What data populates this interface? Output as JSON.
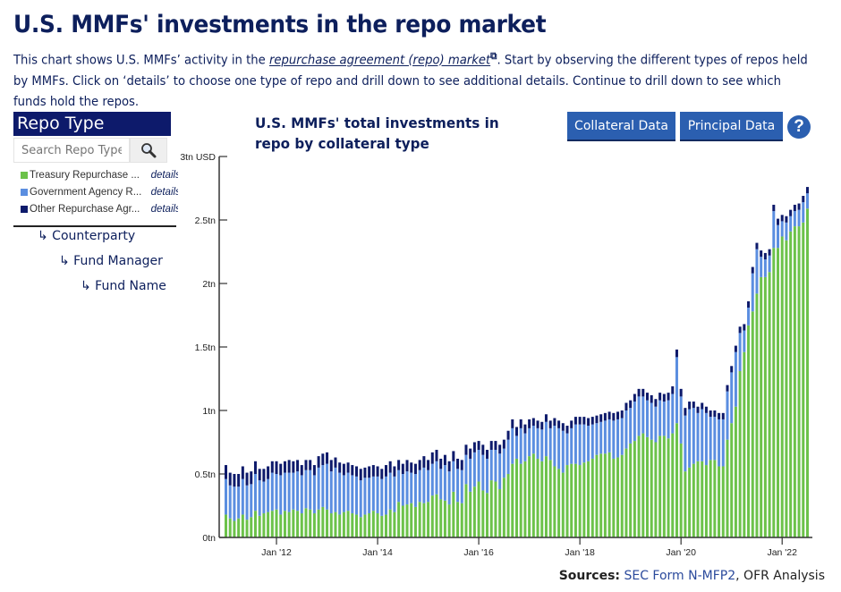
{
  "page": {
    "title": "U.S. MMFs' investments in the repo market",
    "intro_before": "This chart shows U.S. MMFs’ activity in the ",
    "intro_link": "repurchase agreement (repo) market",
    "intro_after": ". Start by observing the different types of repos held by MMFs. Click on ‘details’ to choose one type of repo and drill down to see additional details. Continue to drill down to see which funds hold the repos."
  },
  "sidebar": {
    "header": "Repo Type",
    "search_placeholder": "Search Repo Type",
    "search_icon": "magnifier-icon",
    "items": [
      {
        "label": "Treasury Repurchase ...",
        "detail": "details",
        "color": "#6cc24a"
      },
      {
        "label": "Government Agency R...",
        "detail": "details",
        "color": "#5b8ee0"
      },
      {
        "label": "Other Repurchase Agr...",
        "detail": "details",
        "color": "#0d1a6b"
      }
    ],
    "drilldown": [
      "↳ Counterparty",
      "↳ Fund Manager",
      "↳ Fund Name"
    ]
  },
  "toolbar": {
    "collateral_label": "Collateral Data",
    "principal_label": "Principal Data",
    "help_label": "?"
  },
  "sources": {
    "label": "Sources:",
    "link": "SEC Form N-MFP2",
    "rest": ", OFR Analysis"
  },
  "chart_data": {
    "type": "bar",
    "stacked": true,
    "title": "U.S. MMFs' total investments in repo by collateral type",
    "xlabel": "",
    "ylabel": "USD",
    "ylim": [
      0,
      3
    ],
    "yticks": [
      "0tn",
      "0.5tn",
      "1tn",
      "1.5tn",
      "2tn",
      "2.5tn",
      "3tn USD"
    ],
    "ytick_values": [
      0,
      0.5,
      1,
      1.5,
      2,
      2.5,
      3
    ],
    "xticks": [
      "Jan '12",
      "Jan '14",
      "Jan '16",
      "Jan '18",
      "Jan '20",
      "Jan '22"
    ],
    "xtick_index": [
      12,
      36,
      60,
      84,
      108,
      132
    ],
    "start": "Jan 2011",
    "frequency": "monthly",
    "grid": false,
    "legend": "left-panel",
    "series": [
      {
        "name": "Treasury Repurchase Agreement",
        "color": "#6cc24a",
        "values": [
          0.18,
          0.15,
          0.13,
          0.15,
          0.18,
          0.14,
          0.16,
          0.21,
          0.17,
          0.19,
          0.2,
          0.21,
          0.22,
          0.18,
          0.21,
          0.2,
          0.22,
          0.21,
          0.19,
          0.23,
          0.22,
          0.19,
          0.22,
          0.24,
          0.22,
          0.19,
          0.2,
          0.18,
          0.2,
          0.21,
          0.19,
          0.18,
          0.16,
          0.18,
          0.19,
          0.21,
          0.19,
          0.17,
          0.18,
          0.22,
          0.2,
          0.28,
          0.25,
          0.26,
          0.27,
          0.24,
          0.28,
          0.27,
          0.28,
          0.33,
          0.34,
          0.3,
          0.29,
          0.26,
          0.36,
          0.28,
          0.27,
          0.42,
          0.36,
          0.4,
          0.44,
          0.37,
          0.35,
          0.45,
          0.44,
          0.38,
          0.47,
          0.5,
          0.58,
          0.62,
          0.58,
          0.6,
          0.64,
          0.66,
          0.62,
          0.6,
          0.64,
          0.61,
          0.56,
          0.54,
          0.51,
          0.57,
          0.58,
          0.58,
          0.57,
          0.59,
          0.6,
          0.62,
          0.65,
          0.66,
          0.66,
          0.67,
          0.62,
          0.63,
          0.65,
          0.7,
          0.74,
          0.76,
          0.8,
          0.82,
          0.79,
          0.77,
          0.75,
          0.8,
          0.8,
          0.78,
          0.82,
          0.9,
          0.74,
          0.52,
          0.55,
          0.58,
          0.6,
          0.6,
          0.57,
          0.61,
          0.61,
          0.56,
          0.56,
          0.77,
          0.9,
          1.03,
          1.31,
          1.46,
          1.67,
          1.78,
          1.92,
          2.05,
          2.05,
          2.09,
          2.28,
          2.28,
          2.37,
          2.34,
          2.41,
          2.45,
          2.45,
          2.48,
          2.59
        ]
      },
      {
        "name": "Government Agency Repurchase Agreement",
        "color": "#5b8ee0",
        "values": [
          0.28,
          0.26,
          0.27,
          0.25,
          0.28,
          0.27,
          0.26,
          0.29,
          0.28,
          0.25,
          0.26,
          0.3,
          0.28,
          0.31,
          0.3,
          0.31,
          0.29,
          0.31,
          0.3,
          0.3,
          0.31,
          0.3,
          0.33,
          0.33,
          0.36,
          0.33,
          0.35,
          0.33,
          0.29,
          0.3,
          0.3,
          0.3,
          0.29,
          0.29,
          0.28,
          0.27,
          0.29,
          0.29,
          0.3,
          0.29,
          0.28,
          0.25,
          0.25,
          0.26,
          0.24,
          0.26,
          0.25,
          0.28,
          0.25,
          0.25,
          0.26,
          0.24,
          0.28,
          0.26,
          0.24,
          0.26,
          0.26,
          0.23,
          0.26,
          0.27,
          0.25,
          0.28,
          0.27,
          0.24,
          0.25,
          0.28,
          0.23,
          0.27,
          0.28,
          0.18,
          0.28,
          0.22,
          0.22,
          0.22,
          0.24,
          0.25,
          0.27,
          0.25,
          0.32,
          0.32,
          0.33,
          0.25,
          0.28,
          0.31,
          0.32,
          0.3,
          0.28,
          0.27,
          0.25,
          0.25,
          0.26,
          0.26,
          0.3,
          0.3,
          0.29,
          0.3,
          0.28,
          0.31,
          0.31,
          0.29,
          0.29,
          0.29,
          0.28,
          0.28,
          0.27,
          0.3,
          0.31,
          0.52,
          0.37,
          0.44,
          0.46,
          0.44,
          0.38,
          0.41,
          0.41,
          0.34,
          0.34,
          0.37,
          0.37,
          0.38,
          0.4,
          0.43,
          0.3,
          0.17,
          0.14,
          0.3,
          0.35,
          0.16,
          0.14,
          0.13,
          0.29,
          0.18,
          0.12,
          0.14,
          0.12,
          0.12,
          0.13,
          0.16,
          0.12
        ]
      },
      {
        "name": "Other Repurchase Agreement",
        "color": "#0d1a6b",
        "values": [
          0.11,
          0.1,
          0.1,
          0.1,
          0.1,
          0.1,
          0.1,
          0.1,
          0.09,
          0.1,
          0.1,
          0.09,
          0.1,
          0.09,
          0.09,
          0.1,
          0.09,
          0.09,
          0.08,
          0.08,
          0.08,
          0.08,
          0.09,
          0.09,
          0.09,
          0.09,
          0.08,
          0.08,
          0.09,
          0.08,
          0.08,
          0.08,
          0.09,
          0.08,
          0.09,
          0.09,
          0.08,
          0.08,
          0.09,
          0.09,
          0.08,
          0.08,
          0.08,
          0.09,
          0.08,
          0.08,
          0.08,
          0.09,
          0.08,
          0.09,
          0.09,
          0.08,
          0.08,
          0.08,
          0.08,
          0.08,
          0.08,
          0.08,
          0.08,
          0.08,
          0.07,
          0.08,
          0.07,
          0.07,
          0.07,
          0.07,
          0.07,
          0.07,
          0.07,
          0.07,
          0.07,
          0.07,
          0.07,
          0.06,
          0.06,
          0.06,
          0.06,
          0.06,
          0.06,
          0.06,
          0.06,
          0.06,
          0.06,
          0.06,
          0.06,
          0.06,
          0.06,
          0.06,
          0.06,
          0.06,
          0.06,
          0.06,
          0.06,
          0.06,
          0.06,
          0.06,
          0.06,
          0.06,
          0.06,
          0.06,
          0.06,
          0.06,
          0.06,
          0.06,
          0.06,
          0.06,
          0.06,
          0.06,
          0.06,
          0.06,
          0.06,
          0.05,
          0.05,
          0.05,
          0.05,
          0.05,
          0.05,
          0.05,
          0.05,
          0.05,
          0.05,
          0.05,
          0.05,
          0.05,
          0.05,
          0.05,
          0.05,
          0.05,
          0.05,
          0.05,
          0.05,
          0.05,
          0.05,
          0.05,
          0.05,
          0.05,
          0.05,
          0.05,
          0.05
        ]
      }
    ]
  }
}
